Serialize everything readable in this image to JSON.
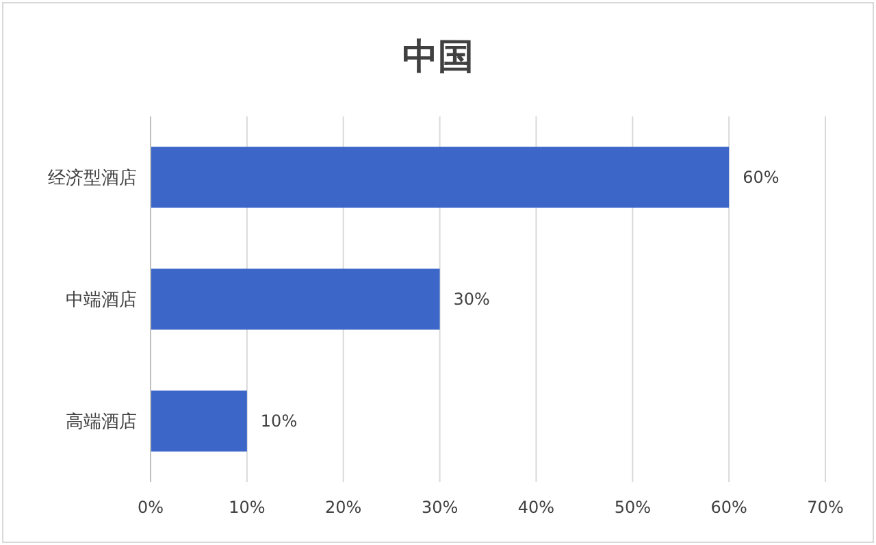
{
  "chart_data": {
    "type": "bar",
    "orientation": "horizontal",
    "title": "中国",
    "categories": [
      "经济型酒店",
      "中端酒店",
      "高端酒店"
    ],
    "values": [
      60,
      30,
      10
    ],
    "value_labels": [
      "60%",
      "30%",
      "10%"
    ],
    "color": "#3d66c9",
    "xlim": [
      0,
      70
    ],
    "xticks": [
      {
        "value": 0,
        "label": "0%"
      },
      {
        "value": 10,
        "label": "10%"
      },
      {
        "value": 20,
        "label": "20%"
      },
      {
        "value": 30,
        "label": "30%"
      },
      {
        "value": 40,
        "label": "40%"
      },
      {
        "value": 50,
        "label": "50%"
      },
      {
        "value": 60,
        "label": "60%"
      },
      {
        "value": 70,
        "label": "70%"
      }
    ],
    "grid": "x"
  }
}
